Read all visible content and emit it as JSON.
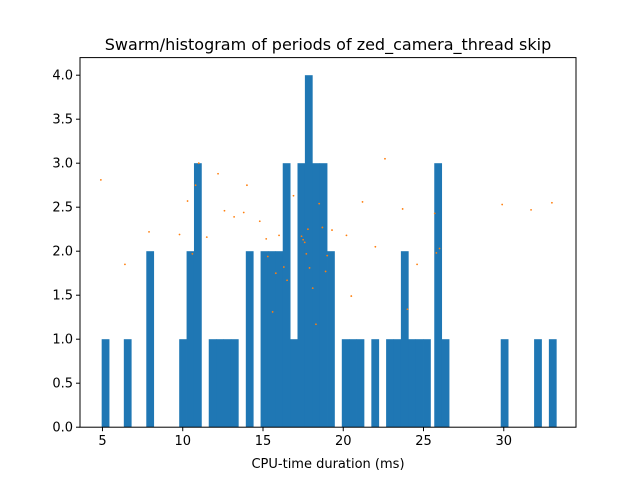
{
  "chart_data": {
    "type": "bar",
    "title": "Swarm/histogram of periods of zed_camera_thread skip",
    "xlabel": "CPU-time duration (ms)",
    "ylabel": "",
    "xlim": [
      3.6,
      34.5
    ],
    "ylim": [
      0,
      4.2
    ],
    "grid": false,
    "bin_width": 0.46,
    "x_ticks": [
      5,
      10,
      15,
      20,
      25,
      30
    ],
    "y_ticks": [
      0.0,
      0.5,
      1.0,
      1.5,
      2.0,
      2.5,
      3.0,
      3.5,
      4.0
    ],
    "colors": {
      "bars": "#1f77b4",
      "points": "#ff7f0e"
    },
    "series": [
      {
        "type": "bar",
        "bins": [
          [
            4.95,
            1
          ],
          [
            6.33,
            1
          ],
          [
            7.73,
            2
          ],
          [
            9.78,
            1
          ],
          [
            10.24,
            2
          ],
          [
            10.7,
            3
          ],
          [
            11.62,
            1
          ],
          [
            12.08,
            1
          ],
          [
            12.54,
            1
          ],
          [
            13.0,
            1
          ],
          [
            13.93,
            2
          ],
          [
            14.85,
            2
          ],
          [
            15.31,
            2
          ],
          [
            15.77,
            2
          ],
          [
            16.23,
            3
          ],
          [
            16.69,
            1
          ],
          [
            17.15,
            3
          ],
          [
            17.61,
            4
          ],
          [
            18.07,
            3
          ],
          [
            18.53,
            3
          ],
          [
            18.99,
            2
          ],
          [
            19.91,
            1
          ],
          [
            20.37,
            1
          ],
          [
            20.83,
            1
          ],
          [
            21.75,
            1
          ],
          [
            22.67,
            1
          ],
          [
            23.13,
            1
          ],
          [
            23.59,
            2
          ],
          [
            24.05,
            1
          ],
          [
            24.51,
            1
          ],
          [
            24.97,
            1
          ],
          [
            25.67,
            3
          ],
          [
            26.13,
            1
          ],
          [
            29.81,
            1
          ],
          [
            31.89,
            1
          ],
          [
            32.81,
            1
          ]
        ]
      },
      {
        "type": "scatter",
        "points": [
          [
            4.9,
            2.81
          ],
          [
            6.4,
            1.85
          ],
          [
            7.9,
            2.22
          ],
          [
            9.8,
            2.19
          ],
          [
            10.3,
            2.57
          ],
          [
            10.6,
            1.97
          ],
          [
            10.8,
            2.75
          ],
          [
            11.0,
            3.0
          ],
          [
            11.5,
            2.16
          ],
          [
            12.2,
            2.88
          ],
          [
            12.6,
            2.46
          ],
          [
            13.2,
            2.39
          ],
          [
            13.8,
            2.44
          ],
          [
            14.0,
            2.75
          ],
          [
            14.8,
            2.34
          ],
          [
            15.2,
            2.14
          ],
          [
            15.3,
            1.94
          ],
          [
            15.6,
            1.31
          ],
          [
            15.8,
            1.75
          ],
          [
            16.0,
            2.18
          ],
          [
            16.3,
            1.82
          ],
          [
            16.5,
            1.67
          ],
          [
            16.9,
            2.63
          ],
          [
            17.4,
            2.17
          ],
          [
            17.5,
            2.13
          ],
          [
            17.6,
            2.1
          ],
          [
            17.7,
            1.97
          ],
          [
            17.8,
            2.25
          ],
          [
            17.9,
            1.81
          ],
          [
            18.1,
            1.58
          ],
          [
            18.3,
            1.17
          ],
          [
            18.5,
            2.54
          ],
          [
            18.7,
            2.27
          ],
          [
            18.9,
            1.77
          ],
          [
            19.0,
            1.95
          ],
          [
            19.3,
            2.24
          ],
          [
            20.2,
            2.18
          ],
          [
            20.5,
            1.49
          ],
          [
            21.2,
            2.56
          ],
          [
            22.0,
            2.05
          ],
          [
            22.6,
            3.05
          ],
          [
            23.7,
            2.48
          ],
          [
            24.0,
            1.34
          ],
          [
            24.6,
            1.85
          ],
          [
            25.7,
            2.43
          ],
          [
            25.8,
            1.98
          ],
          [
            26.0,
            2.03
          ],
          [
            29.9,
            2.53
          ],
          [
            31.7,
            2.47
          ],
          [
            33.0,
            2.55
          ]
        ]
      }
    ]
  }
}
